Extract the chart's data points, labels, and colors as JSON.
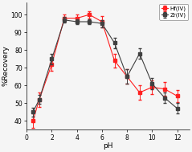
{
  "title": "",
  "xlabel": "pH",
  "ylabel": "%Recovery",
  "xlim": [
    0,
    13
  ],
  "ylim": [
    35,
    107
  ],
  "xticks": [
    0,
    2,
    4,
    6,
    8,
    10,
    12
  ],
  "yticks": [
    40,
    50,
    60,
    70,
    80,
    90,
    100
  ],
  "zr_x": [
    0.5,
    1,
    2,
    3,
    4,
    5,
    6,
    7,
    8,
    9,
    10,
    11,
    12
  ],
  "zr_y": [
    45,
    52,
    75,
    97,
    96,
    96,
    95,
    84,
    65,
    78,
    61,
    53,
    47
  ],
  "zr_err": [
    2.5,
    2.5,
    3,
    1.5,
    1.5,
    1.5,
    2,
    3,
    4,
    3,
    3,
    3,
    3
  ],
  "hf_x": [
    0.5,
    1,
    2,
    3,
    4,
    5,
    6,
    7,
    8,
    9,
    10,
    11,
    12
  ],
  "hf_y": [
    40,
    52,
    72,
    98,
    98,
    100,
    96,
    74,
    65,
    56,
    59,
    58,
    54
  ],
  "hf_err": [
    4,
    4,
    3.5,
    2,
    2,
    2,
    3,
    4,
    4,
    4,
    4,
    4,
    3.5
  ],
  "zr_color": "#404040",
  "hf_color": "#ff2020",
  "legend_labels": [
    "Zr(IV)",
    "Hf(IV)"
  ],
  "background_color": "#f5f5f5",
  "grid": false
}
